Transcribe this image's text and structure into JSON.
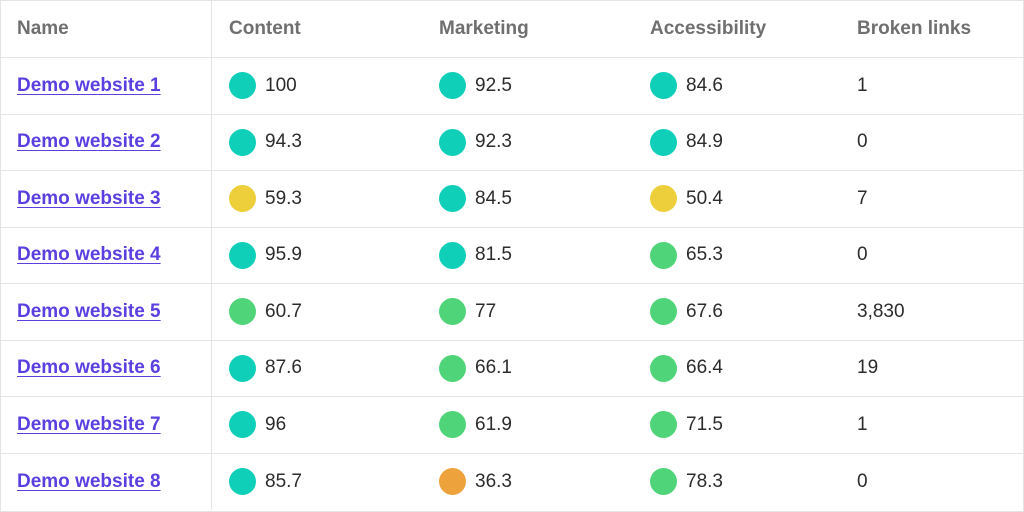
{
  "headers": {
    "name": "Name",
    "content": "Content",
    "marketing": "Marketing",
    "accessibility": "Accessibility",
    "broken_links": "Broken links"
  },
  "status_colors": {
    "teal": "#0fcfb9",
    "green": "#4fd47a",
    "yellow": "#eccf3b",
    "orange": "#eea23c"
  },
  "rows": [
    {
      "name": "Demo website 1",
      "content": {
        "value": "100",
        "status": "teal"
      },
      "marketing": {
        "value": "92.5",
        "status": "teal"
      },
      "accessibility": {
        "value": "84.6",
        "status": "teal"
      },
      "broken_links": "1"
    },
    {
      "name": "Demo website 2",
      "content": {
        "value": "94.3",
        "status": "teal"
      },
      "marketing": {
        "value": "92.3",
        "status": "teal"
      },
      "accessibility": {
        "value": "84.9",
        "status": "teal"
      },
      "broken_links": "0"
    },
    {
      "name": "Demo website 3",
      "content": {
        "value": "59.3",
        "status": "yellow"
      },
      "marketing": {
        "value": "84.5",
        "status": "teal"
      },
      "accessibility": {
        "value": "50.4",
        "status": "yellow"
      },
      "broken_links": "7"
    },
    {
      "name": "Demo website 4",
      "content": {
        "value": "95.9",
        "status": "teal"
      },
      "marketing": {
        "value": "81.5",
        "status": "teal"
      },
      "accessibility": {
        "value": "65.3",
        "status": "green"
      },
      "broken_links": "0"
    },
    {
      "name": "Demo website 5",
      "content": {
        "value": "60.7",
        "status": "green"
      },
      "marketing": {
        "value": "77",
        "status": "green"
      },
      "accessibility": {
        "value": "67.6",
        "status": "green"
      },
      "broken_links": "3,830"
    },
    {
      "name": "Demo website 6",
      "content": {
        "value": "87.6",
        "status": "teal"
      },
      "marketing": {
        "value": "66.1",
        "status": "green"
      },
      "accessibility": {
        "value": "66.4",
        "status": "green"
      },
      "broken_links": "19"
    },
    {
      "name": "Demo website 7",
      "content": {
        "value": "96",
        "status": "teal"
      },
      "marketing": {
        "value": "61.9",
        "status": "green"
      },
      "accessibility": {
        "value": "71.5",
        "status": "green"
      },
      "broken_links": "1"
    },
    {
      "name": "Demo website 8",
      "content": {
        "value": "85.7",
        "status": "teal"
      },
      "marketing": {
        "value": "36.3",
        "status": "orange"
      },
      "accessibility": {
        "value": "78.3",
        "status": "green"
      },
      "broken_links": "0"
    }
  ]
}
